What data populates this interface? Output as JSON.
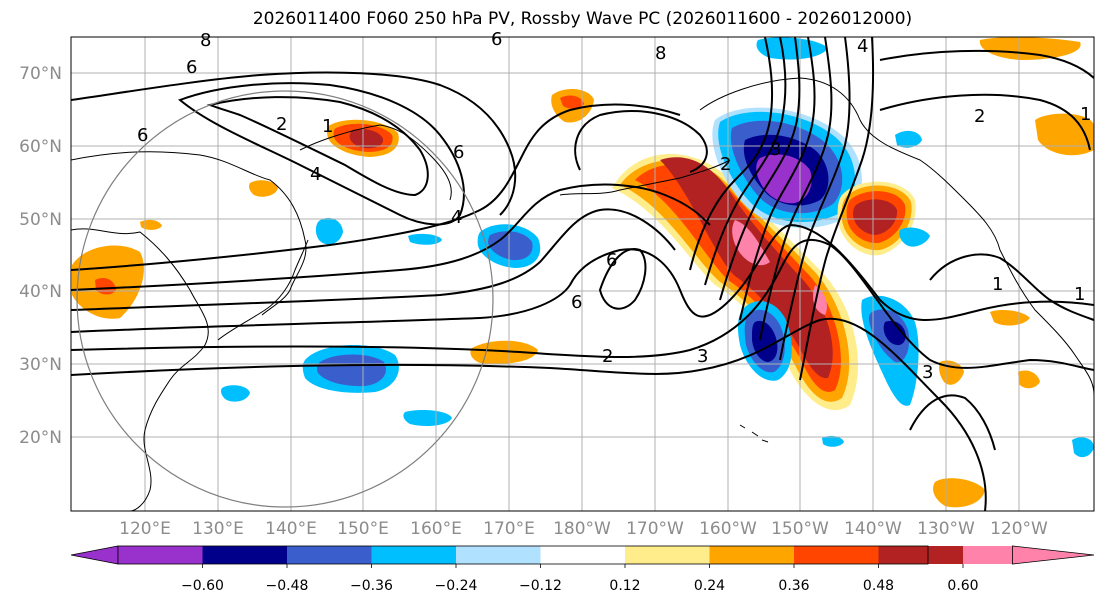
{
  "title": "2026011400 F060 250 hPa PV, Rossby Wave PC (2026011600 - 2026012000)",
  "map": {
    "lat_ticks": [
      "70°N",
      "60°N",
      "50°N",
      "40°N",
      "30°N",
      "20°N"
    ],
    "lon_ticks": [
      "120°E",
      "130°E",
      "140°E",
      "150°E",
      "160°E",
      "170°E",
      "180°W",
      "170°W",
      "160°W",
      "150°W",
      "140°W",
      "130°W",
      "120°W"
    ],
    "contour_labels": [
      "8",
      "6",
      "6",
      "4",
      "2",
      "1",
      "6",
      "2",
      "3",
      "4",
      "6",
      "8",
      "6",
      "4",
      "6",
      "2",
      "3",
      "1",
      "1",
      "1",
      "2",
      "3"
    ],
    "colors": {
      "coast": "#000000",
      "grid": "#b0b0b0",
      "circle": "#7f7f7f"
    }
  },
  "colorbar": {
    "bins": [
      {
        "color": "#9932cc"
      },
      {
        "color": "#00008b"
      },
      {
        "color": "#3a5fcd"
      },
      {
        "color": "#00bfff"
      },
      {
        "color": "#b0e2ff"
      },
      {
        "color": "#ffffff"
      },
      {
        "color": "#ffec8b"
      },
      {
        "color": "#ffa500"
      },
      {
        "color": "#ff4500"
      },
      {
        "color": "#b22222"
      },
      {
        "color": "#ff82ab"
      }
    ],
    "tick_labels": [
      "−0.60",
      "−0.48",
      "−0.36",
      "−0.24",
      "−0.12",
      "0.12",
      "0.24",
      "0.36",
      "0.48",
      "0.60"
    ]
  }
}
